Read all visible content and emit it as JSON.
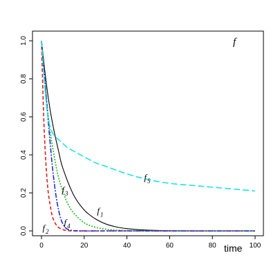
{
  "chart_data": {
    "type": "line",
    "title": "",
    "xlabel": "time",
    "ylabel": "",
    "corner_label": "f",
    "xlim": [
      0,
      100
    ],
    "ylim": [
      0,
      1
    ],
    "xticks": [
      0,
      20,
      40,
      60,
      80,
      100
    ],
    "yticks": [
      0.0,
      0.2,
      0.4,
      0.6,
      0.8,
      1.0
    ],
    "ytick_labels": [
      "0.0",
      "0.2",
      "0.4",
      "0.6",
      "0.8",
      "1.0"
    ],
    "grid": false,
    "legend": "none",
    "series": [
      {
        "name": "f1",
        "label_main": "f",
        "label_sub": "1",
        "label_at": [
          26,
          0.09
        ],
        "color": "#000000",
        "dash": "",
        "x": [
          0,
          2,
          4,
          6,
          8,
          10,
          15,
          20,
          25,
          30,
          35,
          40,
          45,
          50,
          55,
          60,
          70,
          80,
          90,
          100
        ],
        "y": [
          1.0,
          0.8,
          0.64,
          0.52,
          0.42,
          0.33,
          0.19,
          0.11,
          0.065,
          0.037,
          0.021,
          0.012,
          0.007,
          0.004,
          0.002,
          0.001,
          0.0,
          0.0,
          0.0,
          0.0
        ]
      },
      {
        "name": "f2",
        "label_main": "f",
        "label_sub": "2",
        "label_at": [
          0.5,
          0.0
        ],
        "color": "#e41a1c",
        "dash": "5,3",
        "x": [
          0,
          1,
          2,
          3,
          4,
          5,
          6,
          7,
          8,
          10,
          12,
          15,
          20,
          30,
          50,
          100
        ],
        "y": [
          1.0,
          0.61,
          0.37,
          0.22,
          0.14,
          0.08,
          0.05,
          0.03,
          0.018,
          0.007,
          0.002,
          0.0,
          0.0,
          0.0,
          0.0,
          0.0
        ]
      },
      {
        "name": "f3",
        "label_main": "f",
        "label_sub": "3",
        "label_at": [
          9.5,
          0.2
        ],
        "color": "#1ab51a",
        "dash": "2,2",
        "x": [
          0,
          2,
          4,
          6,
          8,
          10,
          12,
          15,
          20,
          25,
          30,
          35,
          40,
          45,
          50,
          60,
          70,
          80,
          90,
          100
        ],
        "y": [
          1.0,
          0.73,
          0.53,
          0.39,
          0.28,
          0.21,
          0.15,
          0.095,
          0.043,
          0.02,
          0.009,
          0.004,
          0.002,
          0.001,
          0.0,
          0.0,
          0.0,
          0.0,
          0.0,
          0.0
        ]
      },
      {
        "name": "f4",
        "label_main": "f",
        "label_sub": "4",
        "label_at": [
          10.5,
          0.03
        ],
        "color": "#1f2bd6",
        "dash": "7,2,2,2",
        "x": [
          0,
          1,
          2,
          3,
          4,
          5,
          6,
          7,
          8,
          9,
          10,
          11,
          12,
          14,
          16,
          20,
          30,
          50,
          100
        ],
        "y": [
          1.0,
          0.87,
          0.74,
          0.6,
          0.47,
          0.35,
          0.25,
          0.17,
          0.11,
          0.065,
          0.037,
          0.02,
          0.01,
          0.003,
          0.001,
          0.0,
          0.0,
          0.0,
          0.0
        ]
      },
      {
        "name": "f5",
        "label_main": "f",
        "label_sub": "5",
        "label_at": [
          48,
          0.265
        ],
        "color": "#1ee3e3",
        "dash": "9,4",
        "x": [
          0,
          1,
          2,
          3,
          4,
          5,
          6,
          8,
          10,
          12,
          15,
          20,
          25,
          30,
          40,
          50,
          60,
          70,
          80,
          90,
          100
        ],
        "y": [
          1.0,
          0.84,
          0.7,
          0.6,
          0.55,
          0.52,
          0.5,
          0.48,
          0.46,
          0.44,
          0.42,
          0.39,
          0.36,
          0.34,
          0.3,
          0.27,
          0.25,
          0.24,
          0.23,
          0.22,
          0.21
        ]
      }
    ]
  }
}
